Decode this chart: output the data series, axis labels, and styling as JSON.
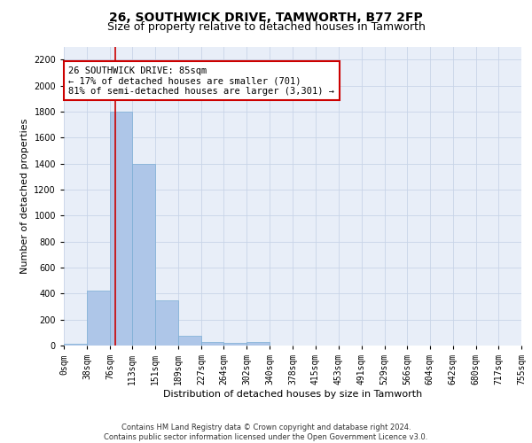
{
  "title": "26, SOUTHWICK DRIVE, TAMWORTH, B77 2FP",
  "subtitle": "Size of property relative to detached houses in Tamworth",
  "xlabel": "Distribution of detached houses by size in Tamworth",
  "ylabel": "Number of detached properties",
  "footer_line1": "Contains HM Land Registry data © Crown copyright and database right 2024.",
  "footer_line2": "Contains public sector information licensed under the Open Government Licence v3.0.",
  "annotation_title": "26 SOUTHWICK DRIVE: 85sqm",
  "annotation_line2": "← 17% of detached houses are smaller (701)",
  "annotation_line3": "81% of semi-detached houses are larger (3,301) →",
  "bin_edges": [
    0,
    38,
    76,
    113,
    151,
    189,
    227,
    264,
    302,
    340,
    378,
    415,
    453,
    491,
    529,
    566,
    604,
    642,
    680,
    717,
    755
  ],
  "bin_labels": [
    "0sqm",
    "38sqm",
    "76sqm",
    "113sqm",
    "151sqm",
    "189sqm",
    "227sqm",
    "264sqm",
    "302sqm",
    "340sqm",
    "378sqm",
    "415sqm",
    "453sqm",
    "491sqm",
    "529sqm",
    "566sqm",
    "604sqm",
    "642sqm",
    "680sqm",
    "717sqm",
    "755sqm"
  ],
  "bar_heights": [
    15,
    420,
    1800,
    1400,
    350,
    75,
    30,
    20,
    30,
    0,
    0,
    0,
    0,
    0,
    0,
    0,
    0,
    0,
    0,
    0
  ],
  "bar_color": "#aec6e8",
  "bar_edge_color": "#7aadd4",
  "grid_color": "#c8d4e8",
  "background_color": "#e8eef8",
  "vline_x": 85,
  "vline_color": "#cc0000",
  "annotation_box_color": "#cc0000",
  "ylim": [
    0,
    2300
  ],
  "yticks": [
    0,
    200,
    400,
    600,
    800,
    1000,
    1200,
    1400,
    1600,
    1800,
    2000,
    2200
  ],
  "title_fontsize": 10,
  "subtitle_fontsize": 9,
  "axis_label_fontsize": 8,
  "tick_fontsize": 7,
  "annotation_fontsize": 7.5,
  "footer_fontsize": 6
}
